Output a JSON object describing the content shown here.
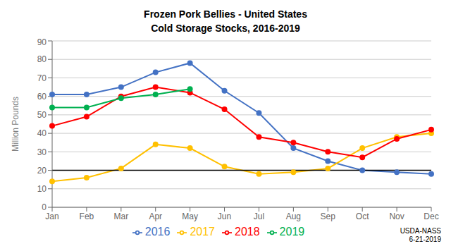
{
  "chart_data": {
    "type": "line",
    "title": "Frozen Pork Bellies - United States",
    "subtitle": "Cold Storage Stocks, 2016-2019",
    "ylabel": "Million Pounds",
    "annotation": "USDA-NASS\n6-21-2019",
    "categories": [
      "Jan",
      "Feb",
      "Mar",
      "Apr",
      "May",
      "Jun",
      "Jul",
      "Aug",
      "Sep",
      "Oct",
      "Nov",
      "Dec"
    ],
    "series": [
      {
        "name": "2016",
        "color": "#4472C4",
        "values": [
          61,
          61,
          65,
          73,
          78,
          63,
          51,
          32,
          25,
          20,
          19,
          18
        ]
      },
      {
        "name": "2017",
        "color": "#FFC000",
        "values": [
          14,
          16,
          21,
          34,
          32,
          22,
          18,
          19,
          21,
          32,
          38,
          40
        ]
      },
      {
        "name": "2018",
        "color": "#FF0000",
        "values": [
          44,
          49,
          60,
          65,
          62,
          53,
          38,
          35,
          30,
          27,
          37,
          42
        ]
      },
      {
        "name": "2019",
        "color": "#00B050",
        "values": [
          54,
          54,
          59,
          61,
          64,
          null,
          null,
          null,
          null,
          null,
          null,
          null
        ]
      }
    ],
    "marker": "circle",
    "reference_line": 20,
    "ylim": [
      0,
      90
    ],
    "yticks": [
      0,
      10,
      20,
      30,
      40,
      50,
      60,
      70,
      80,
      90
    ],
    "grid": true,
    "legend": "bottom"
  }
}
